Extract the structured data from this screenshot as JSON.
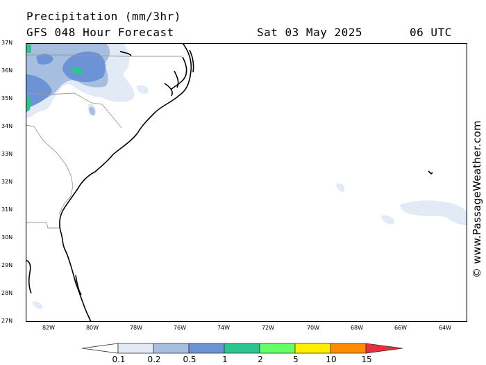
{
  "header": {
    "title": "Precipitation (mm/3hr)",
    "subtitle": "GFS 048 Hour Forecast",
    "date": "Sat 03 May 2025",
    "time": "06 UTC"
  },
  "map": {
    "lat_labels": [
      "37N",
      "36N",
      "35N",
      "34N",
      "33N",
      "32N",
      "31N",
      "30N",
      "29N",
      "28N",
      "27N"
    ],
    "lon_labels": [
      "82W",
      "80W",
      "78W",
      "76W",
      "74W",
      "72W",
      "70W",
      "68W",
      "66W",
      "64W"
    ]
  },
  "legend": {
    "labels": [
      "0.1",
      "0.2",
      "0.5",
      "1",
      "2",
      "5",
      "10",
      "15"
    ],
    "colors": [
      "#ffffff",
      "#e2eaf6",
      "#a6bfe0",
      "#6b93d6",
      "#2ec48f",
      "#66ff66",
      "#ffee00",
      "#ff8c00",
      "#e8303a"
    ]
  },
  "watermark": "© www.PassageWeather.com"
}
